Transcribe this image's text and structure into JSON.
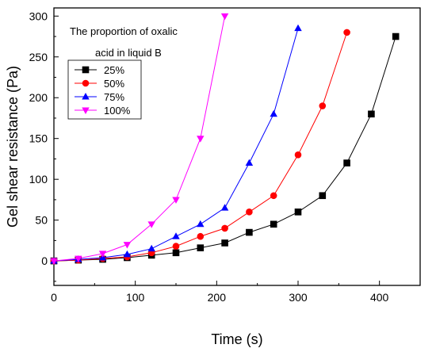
{
  "chart_data": {
    "type": "scatter",
    "title": "",
    "xlabel": "Time (s)",
    "ylabel": "Gel shear resistance (Pa)",
    "xlim": [
      0,
      450
    ],
    "ylim": [
      -30,
      310
    ],
    "xticks": [
      0,
      100,
      200,
      300,
      400
    ],
    "yticks": [
      0,
      50,
      100,
      150,
      200,
      250,
      300
    ],
    "x_minor_step": 50,
    "y_minor_step": 25,
    "grid": false,
    "legend_title": [
      "The proportion of oxalic",
      "acid in liquid B"
    ],
    "legend_position": "top-left",
    "series": [
      {
        "name": "25%",
        "color": "#000000",
        "marker": "square",
        "x": [
          0,
          30,
          60,
          90,
          120,
          150,
          180,
          210,
          240,
          270,
          300,
          330,
          360,
          390,
          420
        ],
        "y": [
          0,
          1,
          2,
          4,
          7,
          10,
          16,
          22,
          35,
          45,
          60,
          80,
          120,
          180,
          275
        ]
      },
      {
        "name": "50%",
        "color": "#ff0000",
        "marker": "circle",
        "x": [
          0,
          30,
          60,
          90,
          120,
          150,
          180,
          210,
          240,
          270,
          300,
          330,
          360
        ],
        "y": [
          0,
          1,
          3,
          5,
          10,
          18,
          30,
          40,
          60,
          80,
          130,
          190,
          280
        ]
      },
      {
        "name": "75%",
        "color": "#0000ff",
        "marker": "triangle-up",
        "x": [
          0,
          30,
          60,
          90,
          120,
          150,
          180,
          210,
          240,
          270,
          300
        ],
        "y": [
          0,
          2,
          4,
          8,
          15,
          30,
          45,
          65,
          120,
          180,
          285
        ]
      },
      {
        "name": "100%",
        "color": "#ff00ff",
        "marker": "triangle-down",
        "x": [
          0,
          30,
          60,
          90,
          120,
          150,
          180,
          210
        ],
        "y": [
          0,
          3,
          9,
          20,
          45,
          75,
          150,
          300
        ]
      }
    ]
  }
}
